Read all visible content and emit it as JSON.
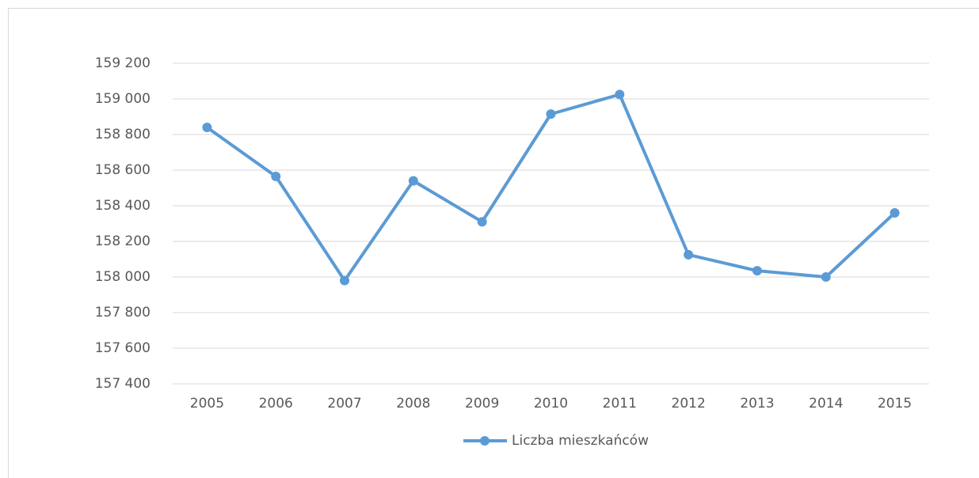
{
  "chart_data": {
    "type": "line",
    "categories": [
      "2005",
      "2006",
      "2007",
      "2008",
      "2009",
      "2010",
      "2011",
      "2012",
      "2013",
      "2014",
      "2015"
    ],
    "series": [
      {
        "name": "Liczba mieszkańców",
        "color": "#5b9bd5",
        "values": [
          158840,
          158565,
          157980,
          158540,
          158310,
          158915,
          159025,
          158125,
          158035,
          158000,
          158360
        ]
      }
    ],
    "ylim": [
      157400,
      159200
    ],
    "yticks": [
      {
        "value": 157400,
        "label": "157 400"
      },
      {
        "value": 157600,
        "label": "157 600"
      },
      {
        "value": 157800,
        "label": "157 800"
      },
      {
        "value": 158000,
        "label": "158 000"
      },
      {
        "value": 158200,
        "label": "158 200"
      },
      {
        "value": 158400,
        "label": "158 400"
      },
      {
        "value": 158600,
        "label": "158 600"
      },
      {
        "value": 158800,
        "label": "158 800"
      },
      {
        "value": 159000,
        "label": "159 000"
      },
      {
        "value": 159200,
        "label": "159 200"
      }
    ],
    "grid": true,
    "legend": "bottom"
  }
}
